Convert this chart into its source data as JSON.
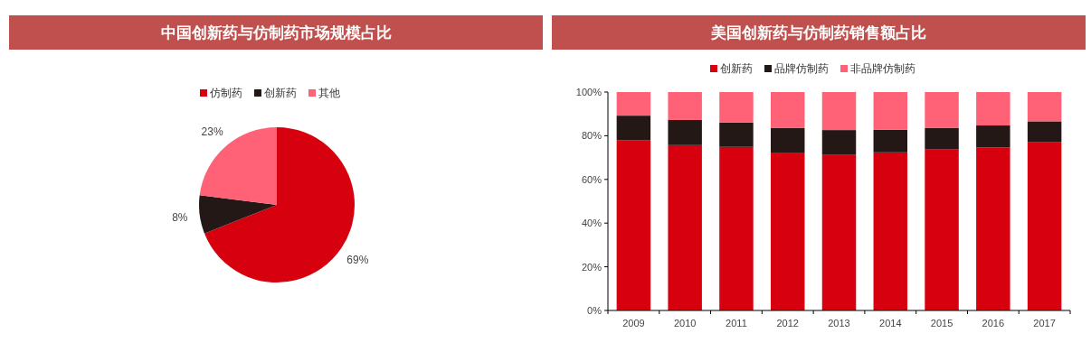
{
  "chart_data": [
    {
      "type": "pie",
      "title": "中国创新药与仿制药市场规模占比",
      "categories": [
        "仿制药",
        "创新药",
        "其他"
      ],
      "values": [
        69,
        8,
        23
      ],
      "colors": [
        "#d7000f",
        "#231815",
        "#ff6276"
      ],
      "value_labels": [
        "69%",
        "8%",
        "23%"
      ],
      "legend": "top"
    },
    {
      "type": "bar",
      "title": "美国创新药与仿制药销售额占比",
      "categories": [
        "2009",
        "2010",
        "2011",
        "2012",
        "2013",
        "2014",
        "2015",
        "2016",
        "2017"
      ],
      "stacked": true,
      "legend": "top",
      "ylim": [
        0,
        100
      ],
      "yticks": [
        {
          "value": 0,
          "label": "0%"
        },
        {
          "value": 20,
          "label": "20%"
        },
        {
          "value": 40,
          "label": "40%"
        },
        {
          "value": 60,
          "label": "60%"
        },
        {
          "value": 80,
          "label": "80%"
        },
        {
          "value": 100,
          "label": "100%"
        }
      ],
      "series": [
        {
          "name": "创新药",
          "color": "#d7000f",
          "values": [
            78,
            75.7,
            74.9,
            72,
            71.2,
            72.4,
            73.7,
            74.6,
            77
          ]
        },
        {
          "name": "品牌仿制药",
          "color": "#231815",
          "values": [
            11.2,
            11.5,
            11.1,
            11.5,
            11.4,
            10.3,
            9.8,
            10.1,
            9.6
          ]
        },
        {
          "name": "非品牌仿制药",
          "color": "#ff6276",
          "values": [
            10.8,
            12.8,
            14,
            16.5,
            17.4,
            17.3,
            16.5,
            15.3,
            13.4
          ]
        }
      ]
    }
  ]
}
